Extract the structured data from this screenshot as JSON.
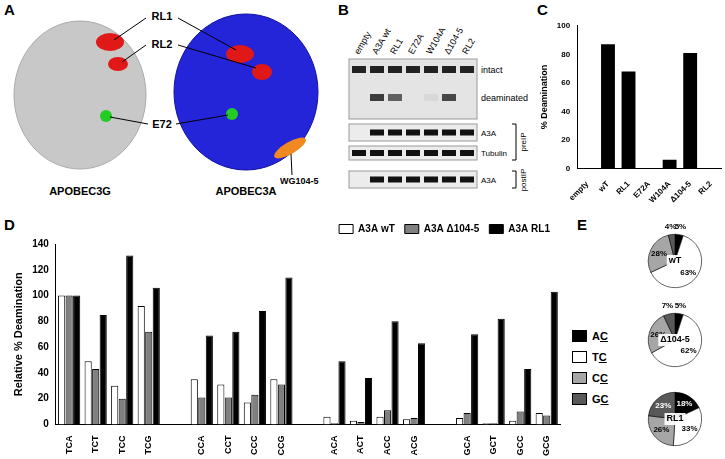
{
  "panel_labels": [
    "A",
    "B",
    "C",
    "D",
    "E"
  ],
  "panel_a": {
    "proteins": [
      "APOBEC3G",
      "APOBEC3A"
    ],
    "labels": [
      "RL1",
      "RL2",
      "E72",
      "WG104-5"
    ]
  },
  "panel_b": {
    "lanes": [
      "empty",
      "A3A wt",
      "RL1",
      "E72A",
      "W104A",
      "Δ104-5",
      "RL2"
    ],
    "a3a_band": [
      false,
      true,
      true,
      true,
      true,
      true,
      true
    ],
    "gel_bands": [
      "intact",
      "deaminated"
    ],
    "blots": [
      "A3A",
      "Tubulin",
      "A3A"
    ],
    "blot_groups": [
      "preIP",
      "postIP"
    ]
  },
  "chart_data": [
    {
      "type": "bar",
      "categories": [
        "empty",
        "wT",
        "RL1",
        "E72A",
        "W104A",
        "Δ104-5",
        "RL2"
      ],
      "values": [
        0,
        87,
        68,
        0,
        6,
        81,
        0
      ],
      "color": "#000000",
      "y_label": "% Deamination",
      "ylim": [
        0,
        100
      ],
      "yticks": [
        0,
        20,
        40,
        60,
        80,
        100
      ],
      "grid": false
    },
    {
      "type": "bar",
      "categories": [
        "TCA",
        "TCT",
        "TCC",
        "TCG",
        null,
        "CCA",
        "CCT",
        "CCC",
        "CCG",
        null,
        "ACA",
        "ACT",
        "ACC",
        "ACG",
        null,
        "GCA",
        "GCT",
        "GCC",
        "GCG"
      ],
      "series": [
        {
          "name": "A3A wT",
          "color": "#ffffff",
          "values": [
            100,
            49,
            30,
            92,
            null,
            35,
            31,
            17,
            35,
            null,
            6,
            3,
            6,
            4,
            null,
            5,
            1,
            3,
            9
          ]
        },
        {
          "name": "A3A Δ104-5",
          "color": "#808080",
          "values": [
            100,
            43,
            20,
            72,
            null,
            21,
            21,
            23,
            31,
            null,
            1,
            2,
            11,
            5,
            null,
            9,
            1,
            10,
            7
          ]
        },
        {
          "name": "A3A RL1",
          "color": "#000000",
          "values": [
            100,
            85,
            131,
            106,
            null,
            69,
            72,
            88,
            114,
            null,
            49,
            36,
            80,
            63,
            null,
            70,
            82,
            43,
            103
          ]
        }
      ],
      "y_label": "Relative % Deamination",
      "ylim": [
        0,
        140
      ],
      "yticks": [
        0,
        20,
        40,
        60,
        80,
        100,
        120,
        140
      ],
      "grid": false,
      "legend": "upper right"
    },
    {
      "type": "pie",
      "title": "wT",
      "categories": [
        "AC",
        "TC",
        "CC",
        "GC"
      ],
      "values": [
        5,
        63,
        28,
        4
      ],
      "value_labels": [
        "5%",
        "63%",
        "28%",
        "4%"
      ],
      "colors": [
        "#000000",
        "#ffffff",
        "#a6a6a6",
        "#595959"
      ],
      "data_labels": true,
      "legend": "left"
    },
    {
      "type": "pie",
      "title": "Δ104-5",
      "categories": [
        "AC",
        "TC",
        "CC",
        "GC"
      ],
      "values": [
        5,
        62,
        26,
        7
      ],
      "value_labels": [
        "5%",
        "62%",
        "26%",
        "7%"
      ],
      "colors": [
        "#000000",
        "#ffffff",
        "#a6a6a6",
        "#595959"
      ],
      "data_labels": true
    },
    {
      "type": "pie",
      "title": "RL1",
      "categories": [
        "AC",
        "TC",
        "CC",
        "GC"
      ],
      "values": [
        18,
        33,
        26,
        23
      ],
      "value_labels": [
        "18%",
        "33%",
        "26%",
        "23%"
      ],
      "colors": [
        "#000000",
        "#ffffff",
        "#a6a6a6",
        "#595959"
      ],
      "data_labels": true
    }
  ]
}
